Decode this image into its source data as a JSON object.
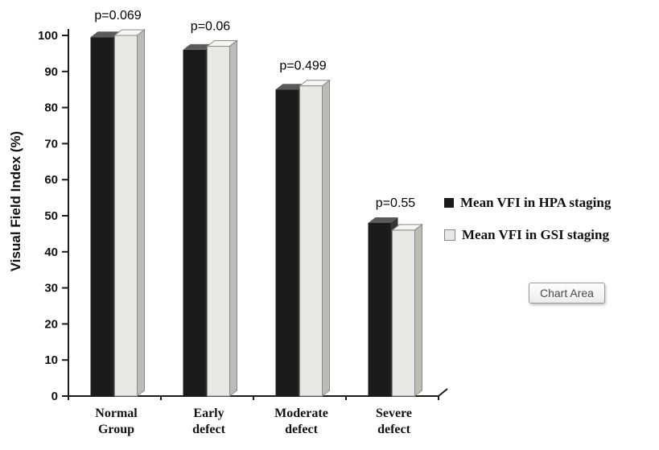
{
  "figure": {
    "chart_area_label": "Chart Area"
  },
  "chart_data": {
    "type": "bar",
    "title": "",
    "xlabel": "",
    "ylabel": "Visual Field Index (%)",
    "ylim": [
      0,
      100
    ],
    "ytick_step": 10,
    "grid": false,
    "legend_position": "right",
    "bar_style": "3d",
    "categories": [
      "Normal Group",
      "Early defect",
      "Moderate defect",
      "Severe defect"
    ],
    "series": [
      {
        "name": "Mean VFI in HPA staging",
        "color": "#1b1b1b",
        "values": [
          99.5,
          96,
          85,
          48
        ]
      },
      {
        "name": "Mean VFI in GSI staging",
        "color": "#e8e8e4",
        "values": [
          100,
          97,
          86,
          46
        ]
      }
    ],
    "annotations": [
      {
        "category": "Normal Group",
        "label": "p=0.069"
      },
      {
        "category": "Early defect",
        "label": "p=0.06"
      },
      {
        "category": "Moderate defect",
        "label": "p=0.499"
      },
      {
        "category": "Severe defect",
        "label": "p=0.55"
      }
    ]
  }
}
